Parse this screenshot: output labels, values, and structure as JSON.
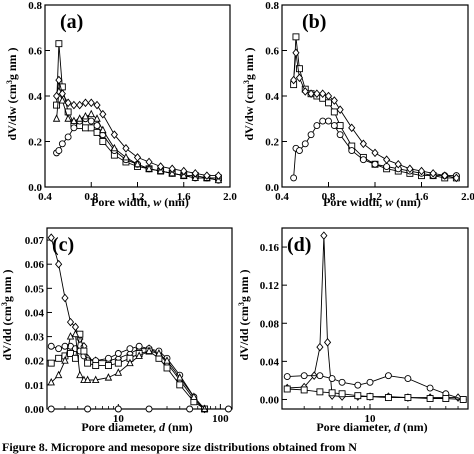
{
  "caption": "Figure 8.  Micropore and mesopore size distributions obtained from N",
  "panels": {
    "a": {
      "letter": "(a)",
      "xlabel_prefix": "Pore width, ",
      "xlabel_var": "w",
      "xlabel_unit": " (nm)",
      "ylabel_main": "dV/dw (cm",
      "ylabel_units": "g  nm  )",
      "xticks": [
        "0.4",
        "0.8",
        "1.2",
        "1.6",
        "2.0"
      ],
      "yticks": [
        "0.0",
        "0.2",
        "0.4",
        "0.6",
        "0.8"
      ]
    },
    "b": {
      "letter": "(b)",
      "xlabel_prefix": "Pore width, ",
      "xlabel_var": "w",
      "xlabel_unit": " (nm)",
      "ylabel_main": "dV/dw (cm",
      "ylabel_units": "g  nm  )",
      "xticks": [
        "0.4",
        "0.8",
        "1.2",
        "1.6",
        "2.0"
      ],
      "yticks": [
        "0.0",
        "0.2",
        "0.4",
        "0.6",
        "0.8"
      ]
    },
    "c": {
      "letter": "(c)",
      "xlabel_prefix": "Pore diameter, ",
      "xlabel_var": "d",
      "xlabel_unit": " (nm)",
      "ylabel_main": "dV/dd (cm",
      "ylabel_units": "g  nm  )",
      "xticks": [
        "10",
        "100"
      ],
      "yticks": [
        "0.00",
        "0.01",
        "0.02",
        "0.03",
        "0.04",
        "0.05",
        "0.06",
        "0.07"
      ]
    },
    "d": {
      "letter": "(d)",
      "xlabel_prefix": "Pore diameter, ",
      "xlabel_var": "d",
      "xlabel_unit": " (nm)",
      "ylabel_main": "dV/dd (cm",
      "ylabel_units": "g  nm  )",
      "xticks": [
        "10"
      ],
      "yticks": [
        "0.00",
        "0.04",
        "0.08",
        "0.12",
        "0.16"
      ]
    }
  },
  "chart_data": [
    {
      "type": "line",
      "panel": "a",
      "xlim": [
        0.4,
        2.0
      ],
      "ylim": [
        0.0,
        0.8
      ],
      "xlabel": "Pore width, w (nm)",
      "ylabel": "dV/dw (cm3 g-1 nm-1)",
      "series": [
        {
          "marker": "square",
          "x": [
            0.5,
            0.52,
            0.55,
            0.6,
            0.65,
            0.7,
            0.75,
            0.8,
            0.85,
            0.9,
            1.0,
            1.1,
            1.2,
            1.3,
            1.4,
            1.5,
            1.6,
            1.7,
            1.8,
            1.9
          ],
          "y": [
            0.36,
            0.63,
            0.44,
            0.33,
            0.28,
            0.27,
            0.26,
            0.26,
            0.24,
            0.2,
            0.14,
            0.11,
            0.09,
            0.08,
            0.07,
            0.06,
            0.05,
            0.05,
            0.04,
            0.04
          ]
        },
        {
          "marker": "circle",
          "x": [
            0.5,
            0.52,
            0.55,
            0.6,
            0.65,
            0.7,
            0.75,
            0.8,
            0.85,
            0.9,
            1.0,
            1.1,
            1.2,
            1.3,
            1.4,
            1.5,
            1.6,
            1.7,
            1.8,
            1.9
          ],
          "y": [
            0.15,
            0.16,
            0.19,
            0.22,
            0.26,
            0.29,
            0.3,
            0.29,
            0.27,
            0.23,
            0.16,
            0.12,
            0.1,
            0.08,
            0.07,
            0.06,
            0.05,
            0.04,
            0.04,
            0.03
          ]
        },
        {
          "marker": "triangle",
          "x": [
            0.5,
            0.52,
            0.55,
            0.6,
            0.65,
            0.7,
            0.75,
            0.8,
            0.85,
            0.9,
            1.0,
            1.1,
            1.2,
            1.3,
            1.4,
            1.5,
            1.6,
            1.7,
            1.8,
            1.9
          ],
          "y": [
            0.3,
            0.42,
            0.38,
            0.3,
            0.29,
            0.3,
            0.31,
            0.32,
            0.3,
            0.25,
            0.17,
            0.13,
            0.1,
            0.08,
            0.07,
            0.06,
            0.05,
            0.04,
            0.04,
            0.03
          ]
        },
        {
          "marker": "diamond",
          "x": [
            0.5,
            0.52,
            0.55,
            0.6,
            0.65,
            0.7,
            0.75,
            0.8,
            0.85,
            0.9,
            1.0,
            1.1,
            1.2,
            1.3,
            1.4,
            1.5,
            1.6,
            1.7,
            1.8,
            1.9
          ],
          "y": [
            0.4,
            0.47,
            0.41,
            0.37,
            0.36,
            0.36,
            0.37,
            0.37,
            0.36,
            0.32,
            0.23,
            0.17,
            0.13,
            0.11,
            0.09,
            0.08,
            0.07,
            0.06,
            0.05,
            0.05
          ]
        }
      ]
    },
    {
      "type": "line",
      "panel": "b",
      "xlim": [
        0.4,
        2.0
      ],
      "ylim": [
        0.0,
        0.8
      ],
      "xlabel": "Pore width, w (nm)",
      "ylabel": "dV/dw (cm3 g-1 nm-1)",
      "series": [
        {
          "marker": "square",
          "x": [
            0.5,
            0.52,
            0.55,
            0.6,
            0.65,
            0.7,
            0.75,
            0.8,
            0.85,
            0.9,
            1.0,
            1.1,
            1.2,
            1.3,
            1.4,
            1.5,
            1.6,
            1.7,
            1.8,
            1.9
          ],
          "y": [
            0.45,
            0.66,
            0.52,
            0.43,
            0.41,
            0.4,
            0.39,
            0.37,
            0.33,
            0.27,
            0.18,
            0.13,
            0.1,
            0.08,
            0.07,
            0.06,
            0.05,
            0.05,
            0.04,
            0.04
          ]
        },
        {
          "marker": "circle",
          "x": [
            0.5,
            0.52,
            0.55,
            0.6,
            0.65,
            0.7,
            0.75,
            0.8,
            0.85,
            0.9,
            1.0,
            1.1,
            1.2,
            1.3,
            1.4,
            1.5,
            1.6,
            1.7,
            1.8,
            1.9
          ],
          "y": [
            0.04,
            0.17,
            0.16,
            0.19,
            0.23,
            0.27,
            0.29,
            0.29,
            0.27,
            0.23,
            0.16,
            0.12,
            0.1,
            0.09,
            0.08,
            0.07,
            0.06,
            0.05,
            0.05,
            0.05
          ]
        },
        {
          "marker": "diamond",
          "x": [
            0.5,
            0.52,
            0.55,
            0.6,
            0.65,
            0.7,
            0.75,
            0.8,
            0.85,
            0.9,
            1.0,
            1.1,
            1.2,
            1.3,
            1.4,
            1.5,
            1.6,
            1.7,
            1.8,
            1.9
          ],
          "y": [
            0.47,
            0.59,
            0.48,
            0.42,
            0.41,
            0.41,
            0.41,
            0.4,
            0.38,
            0.34,
            0.26,
            0.19,
            0.15,
            0.12,
            0.1,
            0.08,
            0.07,
            0.06,
            0.05,
            0.04
          ]
        }
      ]
    },
    {
      "type": "line",
      "panel": "c",
      "xscale": "log",
      "xlim": [
        2,
        130
      ],
      "ylim": [
        0.0,
        0.075
      ],
      "xlabel": "Pore diameter, d (nm)",
      "ylabel": "dV/dd (cm3 g-1 nm-1)",
      "series": [
        {
          "marker": "diamond",
          "x": [
            2.2,
            2.6,
            3.0,
            3.4,
            3.8,
            4.2,
            4.6,
            5,
            6,
            8,
            10,
            13,
            16,
            20,
            25,
            30,
            40,
            55,
            70
          ],
          "y": [
            0.071,
            0.06,
            0.046,
            0.036,
            0.034,
            0.029,
            0.026,
            0.021,
            0.02,
            0.02,
            0.021,
            0.023,
            0.025,
            0.025,
            0.023,
            0.019,
            0.012,
            0.004,
            0.0
          ]
        },
        {
          "marker": "circle",
          "x": [
            2.2,
            2.6,
            3.0,
            3.4,
            3.8,
            4.2,
            4.6,
            5,
            6,
            8,
            10,
            13,
            16,
            20,
            25,
            30,
            40,
            55,
            70
          ],
          "y": [
            0.026,
            0.025,
            0.026,
            0.026,
            0.025,
            0.024,
            0.022,
            0.02,
            0.02,
            0.021,
            0.023,
            0.025,
            0.026,
            0.025,
            0.024,
            0.021,
            0.014,
            0.005,
            0.0
          ]
        },
        {
          "marker": "square",
          "x": [
            2.2,
            2.6,
            3.0,
            3.4,
            3.8,
            4.2,
            4.6,
            5,
            6,
            8,
            10,
            13,
            16,
            20,
            25,
            30,
            40,
            55,
            70
          ],
          "y": [
            0.019,
            0.021,
            0.022,
            0.023,
            0.021,
            0.031,
            0.024,
            0.019,
            0.018,
            0.018,
            0.019,
            0.021,
            0.023,
            0.024,
            0.021,
            0.017,
            0.01,
            0.003,
            0.0
          ]
        },
        {
          "marker": "triangle",
          "x": [
            2.2,
            2.6,
            3.0,
            3.4,
            3.8,
            4.2,
            4.6,
            5,
            6,
            8,
            10,
            13,
            16,
            20,
            25,
            30,
            40,
            55,
            70
          ],
          "y": [
            0.011,
            0.014,
            0.02,
            0.03,
            0.031,
            0.014,
            0.012,
            0.012,
            0.012,
            0.013,
            0.015,
            0.019,
            0.022,
            0.024,
            0.023,
            0.02,
            0.013,
            0.005,
            0.0
          ]
        },
        {
          "marker": "circle",
          "x": [
            2.2,
            5,
            10,
            20,
            50,
            120
          ],
          "y": [
            0.0,
            0.0,
            0.0,
            0.0,
            0.0,
            0.0
          ]
        }
      ]
    },
    {
      "type": "line",
      "panel": "d",
      "xscale": "log",
      "xlim": [
        2,
        60
      ],
      "ylim": [
        -0.01,
        0.18
      ],
      "xlabel": "Pore diameter, d (nm)",
      "ylabel": "dV/dd (cm3 g-1 nm-1)",
      "series": [
        {
          "marker": "diamond",
          "x": [
            2.2,
            3,
            3.6,
            4.0,
            4.3,
            4.6,
            5,
            6,
            8,
            10,
            14,
            20,
            30,
            50
          ],
          "y": [
            0.012,
            0.013,
            0.025,
            0.055,
            0.172,
            0.06,
            0.004,
            0.003,
            0.003,
            0.003,
            0.003,
            0.002,
            0.002,
            0.002
          ]
        },
        {
          "marker": "circle",
          "x": [
            2.2,
            3,
            4,
            5,
            6,
            8,
            10,
            14,
            20,
            30,
            40,
            55
          ],
          "y": [
            0.024,
            0.025,
            0.025,
            0.022,
            0.018,
            0.015,
            0.018,
            0.025,
            0.022,
            0.012,
            0.006,
            0.0
          ]
        },
        {
          "marker": "square",
          "x": [
            2.2,
            3,
            4,
            5,
            6,
            8,
            10,
            14,
            20,
            30,
            40,
            55
          ],
          "y": [
            0.011,
            0.01,
            0.008,
            0.007,
            0.006,
            0.004,
            0.003,
            0.002,
            0.002,
            0.001,
            0.001,
            0.0
          ]
        }
      ]
    }
  ]
}
